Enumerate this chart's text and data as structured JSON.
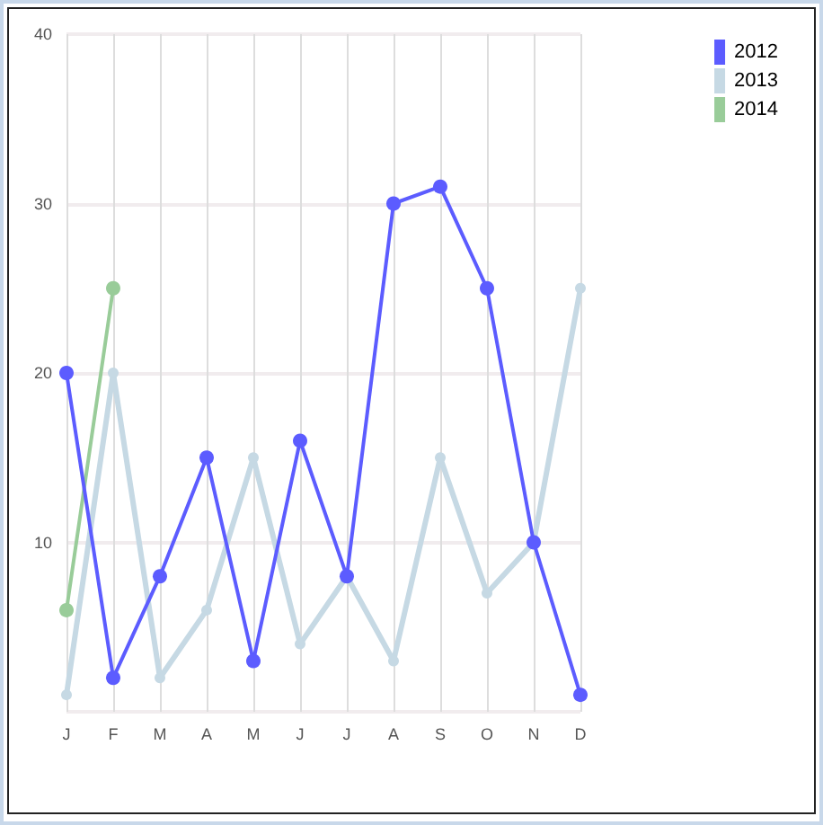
{
  "chart_data": {
    "type": "line",
    "categories": [
      "J",
      "F",
      "M",
      "A",
      "M",
      "J",
      "J",
      "A",
      "S",
      "O",
      "N",
      "D"
    ],
    "series": [
      {
        "name": "2012",
        "color": "#5c5cff",
        "values": [
          20,
          2,
          8,
          15,
          3,
          16,
          8,
          30,
          31,
          25,
          10,
          1
        ]
      },
      {
        "name": "2013",
        "color": "#c6d9e4",
        "values": [
          1,
          20,
          2,
          6,
          15,
          4,
          8,
          3,
          15,
          7,
          10,
          25
        ]
      },
      {
        "name": "2014",
        "color": "#99cc99",
        "values": [
          6,
          25,
          null,
          null,
          null,
          null,
          null,
          null,
          null,
          null,
          null,
          null
        ]
      }
    ],
    "ylim": [
      0,
      40
    ],
    "yticks": [
      {
        "value": 0,
        "label": null
      },
      10,
      20,
      30,
      40
    ],
    "grid": true,
    "legend": "top right",
    "marker": "circle",
    "line_style": "solid"
  }
}
